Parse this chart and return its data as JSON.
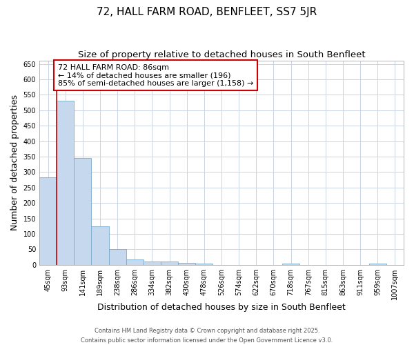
{
  "title1": "72, HALL FARM ROAD, BENFLEET, SS7 5JR",
  "title2": "Size of property relative to detached houses in South Benfleet",
  "xlabel": "Distribution of detached houses by size in South Benfleet",
  "ylabel": "Number of detached properties",
  "categories": [
    "45sqm",
    "93sqm",
    "141sqm",
    "189sqm",
    "238sqm",
    "286sqm",
    "334sqm",
    "382sqm",
    "430sqm",
    "478sqm",
    "526sqm",
    "574sqm",
    "622sqm",
    "670sqm",
    "718sqm",
    "767sqm",
    "815sqm",
    "863sqm",
    "911sqm",
    "959sqm",
    "1007sqm"
  ],
  "values": [
    283,
    530,
    345,
    125,
    50,
    18,
    11,
    10,
    6,
    3,
    0,
    0,
    0,
    0,
    4,
    0,
    0,
    0,
    0,
    4,
    0
  ],
  "bar_color": "#c5d8ee",
  "bar_edge_color": "#7aabcc",
  "vline_color": "#cc0000",
  "annotation_text": "72 HALL FARM ROAD: 86sqm\n← 14% of detached houses are smaller (196)\n85% of semi-detached houses are larger (1,158) →",
  "annotation_box_color": "#ffffff",
  "annotation_box_edge": "#cc0000",
  "ylim": [
    0,
    660
  ],
  "yticks": [
    0,
    50,
    100,
    150,
    200,
    250,
    300,
    350,
    400,
    450,
    500,
    550,
    600,
    650
  ],
  "ax_bg_color": "#ffffff",
  "fig_bg_color": "#ffffff",
  "grid_color": "#c8d4e4",
  "footer_line1": "Contains HM Land Registry data © Crown copyright and database right 2025.",
  "footer_line2": "Contains public sector information licensed under the Open Government Licence v3.0.",
  "title_fontsize": 11,
  "subtitle_fontsize": 9.5,
  "tick_fontsize": 7,
  "label_fontsize": 9,
  "ann_fontsize": 8,
  "footer_fontsize": 6
}
